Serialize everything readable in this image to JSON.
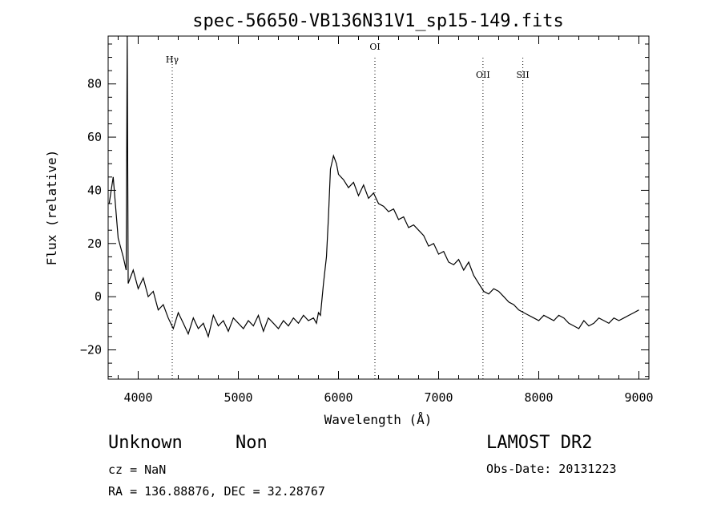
{
  "chart_data": {
    "type": "line",
    "title": "spec-56650-VB136N31V1_sp15-149.fits",
    "xlabel": "Wavelength (Å)",
    "ylabel": "Flux (relative)",
    "xlim": [
      3700,
      9100
    ],
    "ylim": [
      -31,
      98
    ],
    "xticks": [
      4000,
      5000,
      6000,
      7000,
      8000,
      9000
    ],
    "yticks": [
      -20,
      0,
      20,
      40,
      60,
      80
    ],
    "grid": false,
    "line_color": "#000000",
    "lines": [
      {
        "label": "Hγ",
        "x": 4340
      },
      {
        "label": "OI",
        "x": 6364
      },
      {
        "label": "OII",
        "x": 7443
      },
      {
        "label": "SII",
        "x": 7841
      }
    ],
    "series": [
      {
        "x": [
          3710,
          3750,
          3800,
          3850,
          3880,
          3890,
          3900,
          3950,
          4000,
          4050,
          4100,
          4150,
          4200,
          4250,
          4300,
          4350,
          4400,
          4450,
          4500,
          4550,
          4600,
          4650,
          4700,
          4750,
          4800,
          4850,
          4900,
          4950,
          5000,
          5050,
          5100,
          5150,
          5200,
          5250,
          5300,
          5350,
          5400,
          5450,
          5500,
          5550,
          5600,
          5650,
          5700,
          5750,
          5780,
          5800,
          5820,
          5850,
          5880,
          5900,
          5920,
          5950,
          5980,
          6000,
          6050,
          6100,
          6150,
          6200,
          6250,
          6300,
          6350,
          6400,
          6450,
          6500,
          6550,
          6600,
          6650,
          6700,
          6750,
          6800,
          6850,
          6900,
          6950,
          7000,
          7050,
          7100,
          7150,
          7200,
          7250,
          7300,
          7350,
          7400,
          7450,
          7500,
          7550,
          7600,
          7650,
          7700,
          7750,
          7800,
          7850,
          7900,
          7950,
          8000,
          8050,
          8100,
          8150,
          8200,
          8250,
          8300,
          8350,
          8400,
          8450,
          8500,
          8550,
          8600,
          8650,
          8700,
          8750,
          8800,
          8850,
          8900,
          8950,
          9000
        ],
        "values": [
          35,
          45,
          22,
          15,
          10,
          98,
          5,
          10,
          3,
          7,
          0,
          2,
          -5,
          -3,
          -8,
          -12,
          -6,
          -10,
          -14,
          -8,
          -12,
          -10,
          -15,
          -7,
          -11,
          -9,
          -13,
          -8,
          -10,
          -12,
          -9,
          -11,
          -7,
          -13,
          -8,
          -10,
          -12,
          -9,
          -11,
          -8,
          -10,
          -7,
          -9,
          -8,
          -10,
          -6,
          -7,
          5,
          15,
          30,
          48,
          53,
          50,
          46,
          44,
          41,
          43,
          38,
          42,
          37,
          39,
          35,
          34,
          32,
          33,
          29,
          30,
          26,
          27,
          25,
          23,
          19,
          20,
          16,
          17,
          13,
          12,
          14,
          10,
          13,
          8,
          5,
          2,
          1,
          3,
          2,
          0,
          -2,
          -3,
          -5,
          -6,
          -7,
          -8,
          -9,
          -7,
          -8,
          -9,
          -7,
          -8,
          -10,
          -11,
          -12,
          -9,
          -11,
          -10,
          -8,
          -9,
          -10,
          -8,
          -9,
          -8,
          -7,
          -6,
          -5
        ]
      }
    ]
  },
  "info": {
    "class_label": "Unknown",
    "subclass_label": "Non",
    "cz_text": "cz = NaN",
    "coords_text": "RA = 136.88876, DEC =  32.28767",
    "survey_label": "LAMOST DR2",
    "obs_date_text": "Obs-Date: 20131223"
  }
}
